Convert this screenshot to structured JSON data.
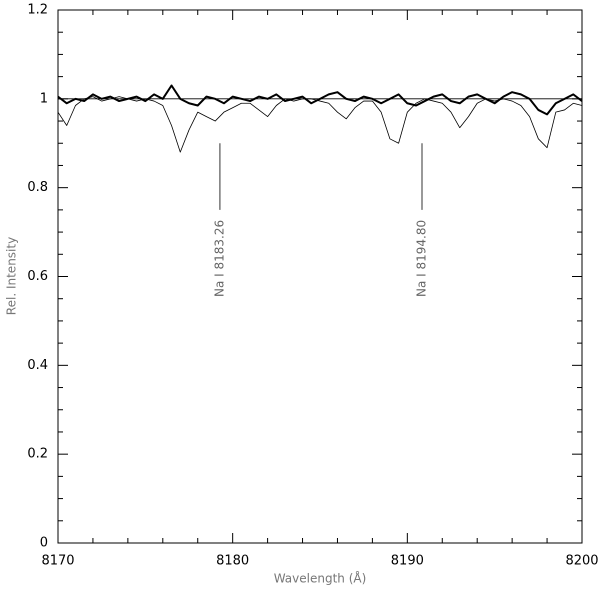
{
  "chart_data": {
    "type": "line",
    "xlabel": "Wavelength (Å)",
    "ylabel": "Rel. Intensity",
    "xlim": [
      8170,
      8200
    ],
    "ylim": [
      0,
      1.2
    ],
    "xticks": [
      8170,
      8180,
      8190,
      8200
    ],
    "yticks": [
      0,
      0.2,
      0.4,
      0.6,
      0.8,
      1,
      1.2
    ],
    "xminorticks": [
      8172,
      8174,
      8176,
      8178,
      8182,
      8184,
      8186,
      8188,
      8192,
      8194,
      8196,
      8198
    ],
    "yminorticks": [
      0.05,
      0.1,
      0.15,
      0.25,
      0.3,
      0.35,
      0.45,
      0.5,
      0.55,
      0.65,
      0.7,
      0.75,
      0.85,
      0.9,
      0.95,
      1.05,
      1.1,
      1.15
    ],
    "x": [
      8170,
      8170.5,
      8171,
      8171.5,
      8172,
      8172.5,
      8173,
      8173.5,
      8174,
      8174.5,
      8175,
      8175.5,
      8176,
      8176.5,
      8177,
      8177.5,
      8178,
      8178.5,
      8179,
      8179.5,
      8180,
      8180.5,
      8181,
      8181.5,
      8182,
      8182.5,
      8183,
      8183.5,
      8184,
      8184.5,
      8185,
      8185.5,
      8186,
      8186.5,
      8187,
      8187.5,
      8188,
      8188.5,
      8189,
      8189.5,
      8190,
      8190.5,
      8191,
      8191.5,
      8192,
      8192.5,
      8193,
      8193.5,
      8194,
      8194.5,
      8195,
      8195.5,
      8196,
      8196.5,
      8197,
      8197.5,
      8198,
      8198.5,
      8199,
      8199.5,
      8200
    ],
    "series": [
      {
        "color": "#000000",
        "width": 2,
        "values": [
          1.005,
          0.99,
          1.0,
          0.995,
          1.01,
          1.0,
          1.005,
          0.995,
          1.0,
          1.005,
          0.995,
          1.01,
          1.0,
          1.03,
          1.0,
          0.99,
          0.985,
          1.005,
          1.0,
          0.99,
          1.005,
          1.0,
          0.995,
          1.005,
          1.0,
          1.01,
          0.995,
          1.0,
          1.005,
          0.99,
          1.0,
          1.01,
          1.015,
          1.0,
          0.995,
          1.005,
          1.0,
          0.99,
          1.0,
          1.01,
          0.99,
          0.985,
          0.995,
          1.005,
          1.01,
          0.995,
          0.99,
          1.005,
          1.01,
          1.0,
          0.99,
          1.005,
          1.015,
          1.01,
          1.0,
          0.975,
          0.965,
          0.99,
          1.0,
          1.01,
          0.995
        ]
      },
      {
        "color": "#000000",
        "width": 0.8,
        "values": [
          0.97,
          0.94,
          0.985,
          1.0,
          1.005,
          0.995,
          1.0,
          1.005,
          1.0,
          0.995,
          1.0,
          0.995,
          0.985,
          0.94,
          0.88,
          0.93,
          0.97,
          0.96,
          0.95,
          0.97,
          0.98,
          0.99,
          0.99,
          0.975,
          0.96,
          0.985,
          1.0,
          0.995,
          1.0,
          1.0,
          0.995,
          0.99,
          0.97,
          0.955,
          0.98,
          0.995,
          0.995,
          0.97,
          0.91,
          0.9,
          0.97,
          0.99,
          1.0,
          0.995,
          0.99,
          0.97,
          0.935,
          0.96,
          0.99,
          1.0,
          0.995,
          1.0,
          0.995,
          0.985,
          0.96,
          0.91,
          0.89,
          0.97,
          0.975,
          0.99,
          0.985
        ]
      }
    ],
    "hline": {
      "value": 1,
      "color": "#000000"
    },
    "annotations": [
      {
        "text": "Na I 8183.26",
        "x": 8179.27,
        "ymin": 0.75,
        "ymax": 0.9
      },
      {
        "text": "Na I 8194.80",
        "x": 8190.84,
        "ymin": 0.75,
        "ymax": 0.9
      }
    ]
  }
}
